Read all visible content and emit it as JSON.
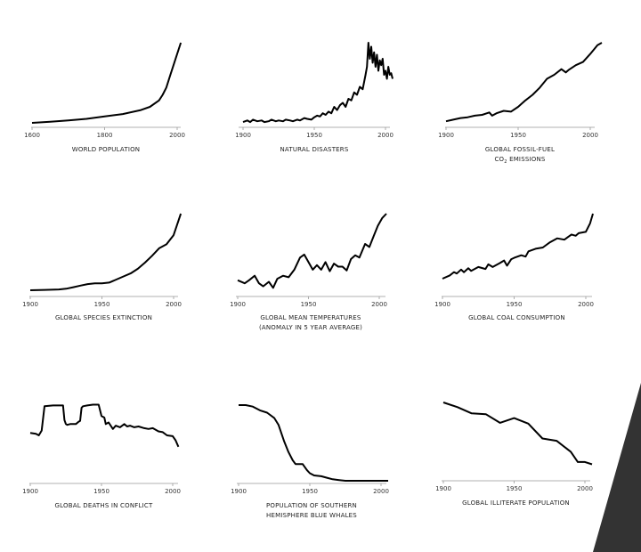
{
  "colors": {
    "line": "#000000",
    "axis": "#999999",
    "corner": "#333333"
  },
  "chart_data": [
    {
      "type": "line",
      "title": "WORLD POPULATION",
      "title2": "",
      "xticks": [
        1600,
        1800,
        2000
      ],
      "xlim": [
        1600,
        2010
      ],
      "ylim": [
        0,
        100
      ],
      "x": [
        1600,
        1650,
        1700,
        1750,
        1800,
        1850,
        1900,
        1925,
        1950,
        1960,
        1970,
        1980,
        1990,
        2000,
        2010
      ],
      "y": [
        0,
        1.5,
        3,
        5,
        8,
        11,
        16,
        20,
        28,
        35,
        44,
        58,
        72,
        86,
        100
      ]
    },
    {
      "type": "line",
      "title": "NATURAL DISASTERS",
      "title2": "",
      "xticks": [
        1900,
        1950,
        2000
      ],
      "xlim": [
        1900,
        2005
      ],
      "ylim": [
        0,
        100
      ],
      "x": [
        1900,
        1903,
        1905,
        1907,
        1910,
        1913,
        1915,
        1918,
        1920,
        1923,
        1925,
        1928,
        1930,
        1933,
        1935,
        1938,
        1940,
        1943,
        1945,
        1948,
        1950,
        1952,
        1954,
        1956,
        1958,
        1960,
        1962,
        1964,
        1966,
        1968,
        1970,
        1972,
        1974,
        1976,
        1978,
        1980,
        1982,
        1984,
        1986,
        1987,
        1988,
        1989,
        1990,
        1991,
        1992,
        1993,
        1994,
        1995,
        1996,
        1997,
        1998,
        1999,
        2000,
        2001,
        2002,
        2003,
        2004,
        2005
      ],
      "y": [
        1,
        3,
        1,
        4,
        2,
        3,
        1,
        2,
        4,
        2,
        3,
        2,
        4,
        3,
        2,
        4,
        3,
        6,
        5,
        4,
        7,
        9,
        8,
        12,
        10,
        14,
        12,
        20,
        16,
        22,
        25,
        20,
        30,
        28,
        38,
        35,
        45,
        42,
        60,
        70,
        100,
        80,
        95,
        75,
        88,
        70,
        85,
        65,
        78,
        72,
        80,
        60,
        65,
        55,
        70,
        60,
        62,
        55
      ]
    },
    {
      "type": "line",
      "title": "GLOBAL FOSSIL-FUEL",
      "title2": "CO",
      "title2_sub": "2",
      "title2_rest": " EMISSIONS",
      "xticks": [
        1900,
        1950,
        2000
      ],
      "xlim": [
        1900,
        2008
      ],
      "ylim": [
        0,
        100
      ],
      "x": [
        1900,
        1905,
        1910,
        1915,
        1920,
        1925,
        1930,
        1932,
        1935,
        1940,
        1945,
        1950,
        1955,
        1960,
        1965,
        1970,
        1975,
        1980,
        1983,
        1985,
        1990,
        1995,
        2000,
        2005,
        2008
      ],
      "y": [
        2,
        4,
        6,
        7,
        9,
        10,
        13,
        9,
        12,
        15,
        14,
        20,
        28,
        35,
        44,
        55,
        60,
        67,
        63,
        66,
        72,
        76,
        86,
        97,
        100
      ]
    },
    {
      "type": "line",
      "title": "GLOBAL SPECIES EXTINCTION",
      "title2": "",
      "xticks": [
        1900,
        1950,
        2000
      ],
      "xlim": [
        1900,
        2005
      ],
      "ylim": [
        0,
        100
      ],
      "x": [
        1900,
        1910,
        1920,
        1925,
        1930,
        1935,
        1940,
        1945,
        1950,
        1955,
        1960,
        1965,
        1970,
        1975,
        1980,
        1985,
        1990,
        1995,
        2000,
        2005
      ],
      "y": [
        0,
        0.5,
        1,
        2,
        4,
        6,
        8,
        9,
        9,
        10,
        14,
        18,
        22,
        28,
        36,
        45,
        55,
        60,
        72,
        100
      ]
    },
    {
      "type": "line",
      "title": "GLOBAL MEAN TEMPERATURES",
      "title2": "(ANOMALY IN 5 YEAR AVERAGE)",
      "xticks": [
        1900,
        1950,
        2000
      ],
      "xlim": [
        1900,
        2005
      ],
      "ylim": [
        0,
        100
      ],
      "x": [
        1900,
        1905,
        1908,
        1912,
        1915,
        1918,
        1922,
        1925,
        1928,
        1932,
        1936,
        1940,
        1944,
        1947,
        1950,
        1953,
        1956,
        1959,
        1962,
        1965,
        1968,
        1971,
        1974,
        1977,
        1980,
        1983,
        1986,
        1990,
        1993,
        1996,
        1999,
        2002,
        2005
      ],
      "y": [
        12,
        8,
        12,
        18,
        8,
        4,
        10,
        2,
        14,
        18,
        16,
        26,
        42,
        46,
        36,
        26,
        32,
        26,
        36,
        24,
        34,
        30,
        30,
        25,
        40,
        45,
        42,
        60,
        56,
        70,
        84,
        94,
        100
      ]
    },
    {
      "type": "line",
      "title": "GLOBAL COAL CONSUMPTION",
      "title2": "",
      "xticks": [
        1900,
        1950,
        2000
      ],
      "xlim": [
        1900,
        2005
      ],
      "ylim": [
        0,
        100
      ],
      "x": [
        1900,
        1905,
        1908,
        1910,
        1913,
        1915,
        1918,
        1920,
        1925,
        1930,
        1932,
        1935,
        1940,
        1943,
        1945,
        1948,
        1950,
        1955,
        1958,
        1960,
        1965,
        1970,
        1975,
        1980,
        1985,
        1990,
        1993,
        1995,
        2000,
        2003,
        2005
      ],
      "y": [
        0,
        5,
        10,
        8,
        14,
        10,
        16,
        12,
        18,
        15,
        22,
        18,
        24,
        28,
        20,
        30,
        32,
        36,
        34,
        42,
        46,
        48,
        56,
        62,
        60,
        68,
        66,
        70,
        72,
        85,
        100
      ]
    },
    {
      "type": "line",
      "title": "GLOBAL DEATHS IN CONFLICT",
      "title2": "",
      "xticks": [
        1900,
        1950,
        2000
      ],
      "xlim": [
        1900,
        2004
      ],
      "ylim": [
        0,
        100
      ],
      "x": [
        1900,
        1904,
        1906,
        1908,
        1910,
        1916,
        1923,
        1924,
        1925,
        1926,
        1928,
        1932,
        1934,
        1935,
        1936,
        1937,
        1940,
        1944,
        1948,
        1950,
        1952,
        1953,
        1955,
        1958,
        1960,
        1963,
        1966,
        1968,
        1970,
        1973,
        1976,
        1980,
        1983,
        1986,
        1990,
        1993,
        1996,
        2000,
        2002,
        2004
      ],
      "y": [
        59,
        58,
        56,
        62,
        92,
        93,
        93,
        75,
        70,
        69,
        70,
        70,
        73,
        74,
        90,
        92,
        93,
        94,
        94,
        80,
        78,
        70,
        72,
        64,
        68,
        66,
        70,
        67,
        68,
        66,
        67,
        65,
        64,
        65,
        61,
        60,
        56,
        55,
        50,
        42
      ]
    },
    {
      "type": "line",
      "title": "POPULATION OF SOUTHERN",
      "title2": "HEMISPHERE BLUE WHALES",
      "xticks": [
        1900,
        1950,
        2000
      ],
      "xlim": [
        1900,
        2005
      ],
      "ylim": [
        0,
        100
      ],
      "x": [
        1900,
        1905,
        1910,
        1915,
        1920,
        1925,
        1928,
        1932,
        1935,
        1938,
        1940,
        1943,
        1945,
        1948,
        1950,
        1953,
        1958,
        1962,
        1966,
        1970,
        1975,
        1985,
        1995,
        2005
      ],
      "y": [
        100,
        100,
        98,
        93,
        90,
        83,
        74,
        52,
        38,
        27,
        22,
        22,
        22,
        14,
        10,
        7,
        6,
        4,
        2,
        1,
        0,
        0,
        0,
        0
      ]
    },
    {
      "type": "line",
      "title": "GLOBAL ILLITERATE POPULATION",
      "title2": "",
      "xticks": [
        1900,
        1950,
        2000
      ],
      "xlim": [
        1900,
        2005
      ],
      "ylim": [
        0,
        100
      ],
      "x": [
        1900,
        1910,
        1920,
        1930,
        1940,
        1950,
        1960,
        1970,
        1980,
        1990,
        1995,
        2000,
        2005
      ],
      "y": [
        100,
        94,
        86,
        85,
        74,
        80,
        73,
        54,
        51,
        37,
        24,
        24,
        21
      ]
    }
  ]
}
